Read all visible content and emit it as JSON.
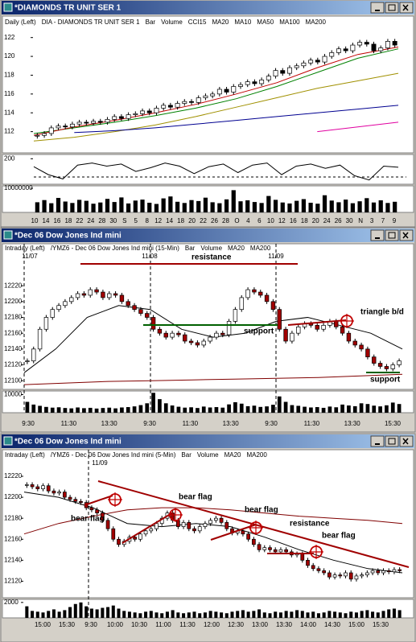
{
  "windows": [
    {
      "title": "*DIAMONDS TR UNIT SER 1",
      "header": [
        "Daily (Left)",
        "DIA - DIAMONDS TR UNIT SER 1",
        "Bar",
        "Volume",
        "CCI15"
      ],
      "price": {
        "ylim": [
          110,
          123
        ],
        "yticks": [
          112,
          114,
          116,
          118,
          120,
          122
        ],
        "closes": [
          111.6,
          111.8,
          112.4,
          112.6,
          112.5,
          112.8,
          113.0,
          112.9,
          113.1,
          113.0,
          113.3,
          113.6,
          113.4,
          113.8,
          113.9,
          114.2,
          114.0,
          114.5,
          114.8,
          114.6,
          115.0,
          115.2,
          115.1,
          115.6,
          115.8,
          116.0,
          116.5,
          116.2,
          116.8,
          117.0,
          117.3,
          117.1,
          117.5,
          117.9,
          118.5,
          118.2,
          118.8,
          119.0,
          119.3,
          119.6,
          119.4,
          120.0,
          120.4,
          120.8,
          120.6,
          121.2,
          121.5,
          121.3,
          120.6,
          120.9,
          121.6,
          121.2
        ],
        "up_color": "#ffffff",
        "down_color": "#000000",
        "ma_lines": [
          {
            "name": "MA20",
            "color": "#008000",
            "values": [
              111.8,
              112.4,
              113.0,
              113.7,
              114.5,
              115.5,
              116.8,
              118.3,
              119.8,
              120.8
            ]
          },
          {
            "name": "MA10",
            "color": "#c00000",
            "values": [
              111.6,
              112.5,
              113.2,
              114.0,
              114.9,
              116.0,
              117.2,
              118.8,
              120.2,
              121.0
            ]
          },
          {
            "name": "MA50",
            "color": "#a09000",
            "values": [
              111.0,
              111.4,
              112.0,
              112.7,
              113.6,
              114.6,
              115.6,
              116.6,
              117.4,
              118.2
            ]
          },
          {
            "name": "MA100",
            "color": "#000090",
            "values": [
              null,
              111.9,
              112.1,
              112.4,
              112.8,
              113.2,
              113.6,
              114.0,
              114.4,
              114.8
            ]
          },
          {
            "name": "MA200",
            "color": "#e000a0",
            "values": [
              null,
              null,
              null,
              null,
              null,
              null,
              null,
              112.0,
              112.5,
              113.0
            ]
          }
        ]
      },
      "cci": {
        "ylim": [
          -250,
          250
        ],
        "yticks": [
          200
        ],
        "values": [
          50,
          -100,
          -180,
          80,
          120,
          60,
          100,
          -40,
          30,
          120,
          60,
          -80,
          50,
          100,
          -60,
          80,
          120,
          -100,
          60,
          100,
          20,
          80,
          -120,
          -200,
          60,
          40
        ]
      },
      "volume": {
        "ylim": [
          0,
          11000000
        ],
        "yticks": [
          10000000
        ],
        "values": [
          4200000,
          5100000,
          3800000,
          6000000,
          4500000,
          3900000,
          5200000,
          4800000,
          3600000,
          4100000,
          5600000,
          4300000,
          6200000,
          3700000,
          4900000,
          5300000,
          4000000,
          3500000,
          5800000,
          6600000,
          4400000,
          3900000,
          5100000,
          4700000,
          6100000,
          4200000,
          3800000,
          5400000,
          9200000,
          4600000,
          5000000,
          4300000,
          3900000,
          6800000,
          5200000,
          4100000,
          3700000,
          4800000,
          5500000,
          4000000,
          3600000,
          7100000,
          4900000,
          4200000,
          5300000,
          3800000,
          4600000,
          5900000,
          4100000,
          5000000,
          3900000,
          4400000
        ]
      },
      "x_labels": [
        "10",
        "14",
        "16",
        "18",
        "22",
        "24",
        "28",
        "30",
        "S",
        "5",
        "8",
        "12",
        "14",
        "18",
        "20",
        "22",
        "26",
        "28",
        "O",
        "4",
        "6",
        "10",
        "12",
        "16",
        "18",
        "20",
        "24",
        "26",
        "30",
        "N",
        "3",
        "7",
        "9"
      ],
      "date_labels": [],
      "annotations": []
    },
    {
      "title": "*Dec 06  Dow Jones Ind mini",
      "header": [
        "Intraday (Left)",
        "/YMZ6 - Dec 06  Dow Jones Ind mini (15-Min)",
        "Bar",
        "Volume"
      ],
      "price": {
        "ylim": [
          12090,
          12270
        ],
        "yticks": [
          12100,
          12120,
          12140,
          12160,
          12180,
          12200,
          12220
        ],
        "closes": [
          12125,
          12140,
          12165,
          12180,
          12190,
          12195,
          12200,
          12205,
          12210,
          12208,
          12215,
          12212,
          12205,
          12210,
          12208,
          12200,
          12195,
          12190,
          12185,
          12180,
          12165,
          12160,
          12155,
          12160,
          12158,
          12150,
          12148,
          12145,
          12150,
          12155,
          12160,
          12158,
          12175,
          12190,
          12205,
          12215,
          12212,
          12208,
          12200,
          12190,
          12165,
          12150,
          12160,
          12168,
          12172,
          12170,
          12165,
          12170,
          12175,
          12168,
          12160,
          12150,
          12145,
          12140,
          12130,
          12122,
          12118,
          12115,
          12120,
          12125
        ],
        "up_color": "#ffffff",
        "down_color": "#a00000",
        "ma_lines": [
          {
            "name": "MA20",
            "color": "#000000",
            "values": [
              12110,
              12140,
              12180,
              12195,
              12190,
              12165,
              12155,
              12160,
              12175,
              12180,
              12170,
              12160,
              12140
            ]
          },
          {
            "name": "MA200",
            "color": "#800000",
            "values": [
              12095,
              12097,
              12099,
              12100,
              12101,
              12102,
              12103,
              12104,
              12106,
              12108
            ]
          }
        ]
      },
      "volume": {
        "ylim": [
          0,
          12000
        ],
        "yticks": [
          10000
        ],
        "values": [
          6000,
          4500,
          3800,
          3200,
          2800,
          3000,
          2600,
          2400,
          2900,
          2500,
          2700,
          2300,
          2600,
          2800,
          2400,
          2900,
          3100,
          3500,
          4200,
          5200,
          11000,
          7500,
          5200,
          4000,
          3300,
          2800,
          3000,
          2600,
          3400,
          2900,
          3100,
          2800,
          4600,
          5800,
          5000,
          3600,
          3900,
          3200,
          3500,
          4400,
          9000,
          6000,
          4200,
          3800,
          3300,
          2900,
          3100,
          2700,
          3400,
          3000,
          4500,
          4000,
          3600,
          5200,
          4800,
          3900,
          3500,
          4100,
          5600,
          4800
        ]
      },
      "x_labels": [
        "9:30",
        "11:30",
        "13:30",
        "9:30",
        "11:30",
        "13:30",
        "9:30",
        "11:30",
        "13:30",
        "15:30"
      ],
      "date_labels": [
        "11/07",
        "11/08",
        "11/09"
      ],
      "annotations": [
        {
          "text": "resistance",
          "color": "#a00000"
        },
        {
          "text": "support",
          "color": "#006000"
        },
        {
          "text": "triangle b/d",
          "color": "#a00000"
        },
        {
          "text": "support",
          "color": "#006000"
        }
      ]
    },
    {
      "title": "*Dec 06  Dow Jones Ind mini",
      "header": [
        "Intraday (Left)",
        "/YMZ6 - Dec 06  Dow Jones Ind mini (5-Min)",
        "Bar",
        "Volume"
      ],
      "price": {
        "ylim": [
          12105,
          12243
        ],
        "yticks": [
          12120,
          12140,
          12160,
          12180,
          12200,
          12220
        ],
        "closes": [
          12212,
          12210,
          12208,
          12211,
          12206,
          12204,
          12205,
          12200,
          12198,
          12196,
          12195,
          12190,
          12188,
          12185,
          12178,
          12170,
          12160,
          12155,
          12158,
          12162,
          12160,
          12165,
          12168,
          12170,
          12175,
          12180,
          12185,
          12178,
          12172,
          12176,
          12170,
          12168,
          12172,
          12175,
          12178,
          12180,
          12176,
          12170,
          12166,
          12168,
          12165,
          12160,
          12155,
          12150,
          12152,
          12150,
          12148,
          12150,
          12148,
          12145,
          12146,
          12140,
          12135,
          12132,
          12130,
          12128,
          12124,
          12126,
          12125,
          12128,
          12122,
          12125,
          12126,
          12128,
          12130,
          12128,
          12130,
          12129,
          12131,
          12130
        ],
        "up_color": "#ffffff",
        "down_color": "#a00000",
        "ma_lines": [
          {
            "name": "MA20",
            "color": "#000000",
            "values": [
              12205,
              12200,
              12190,
              12175,
              12172,
              12175,
              12172,
              12162,
              12150,
              12140,
              12132,
              12128
            ]
          },
          {
            "name": "MA200",
            "color": "#800000",
            "values": [
              12165,
              12175,
              12182,
              12188,
              12190,
              12190,
              12188,
              12185,
              12182,
              12180,
              12178,
              12175
            ]
          }
        ]
      },
      "volume": {
        "ylim": [
          0,
          2400
        ],
        "yticks": [
          2000
        ],
        "values": [
          1500,
          900,
          800,
          700,
          900,
          1100,
          800,
          1000,
          1400,
          1800,
          2000,
          1500,
          1200,
          1100,
          1300,
          1400,
          1600,
          1200,
          900,
          800,
          700,
          600,
          800,
          900,
          700,
          600,
          800,
          1000,
          700,
          600,
          700,
          800,
          600,
          700,
          900,
          800,
          700,
          600,
          800,
          900,
          1000,
          800,
          900,
          1100,
          700,
          600,
          800,
          700,
          900,
          800,
          1000,
          900,
          700,
          800,
          600,
          700,
          900,
          800,
          700,
          600,
          800,
          700,
          900,
          1000,
          800,
          700,
          900,
          1100,
          1200,
          1000
        ]
      },
      "x_labels": [
        "15:00",
        "15:30",
        "9:30",
        "10:00",
        "10:30",
        "11:00",
        "11:30",
        "12:00",
        "12:30",
        "13:00",
        "13:30",
        "14:00",
        "14:30",
        "15:00",
        "15:30"
      ],
      "date_labels": [
        "11/09"
      ],
      "annotations": [
        {
          "text": "bear flag",
          "color": "#a00000"
        },
        {
          "text": "bear flag",
          "color": "#a00000"
        },
        {
          "text": "bear flag",
          "color": "#a00000"
        },
        {
          "text": "resistance",
          "color": "#a00000"
        },
        {
          "text": "bear flag",
          "color": "#a00000"
        }
      ]
    }
  ]
}
